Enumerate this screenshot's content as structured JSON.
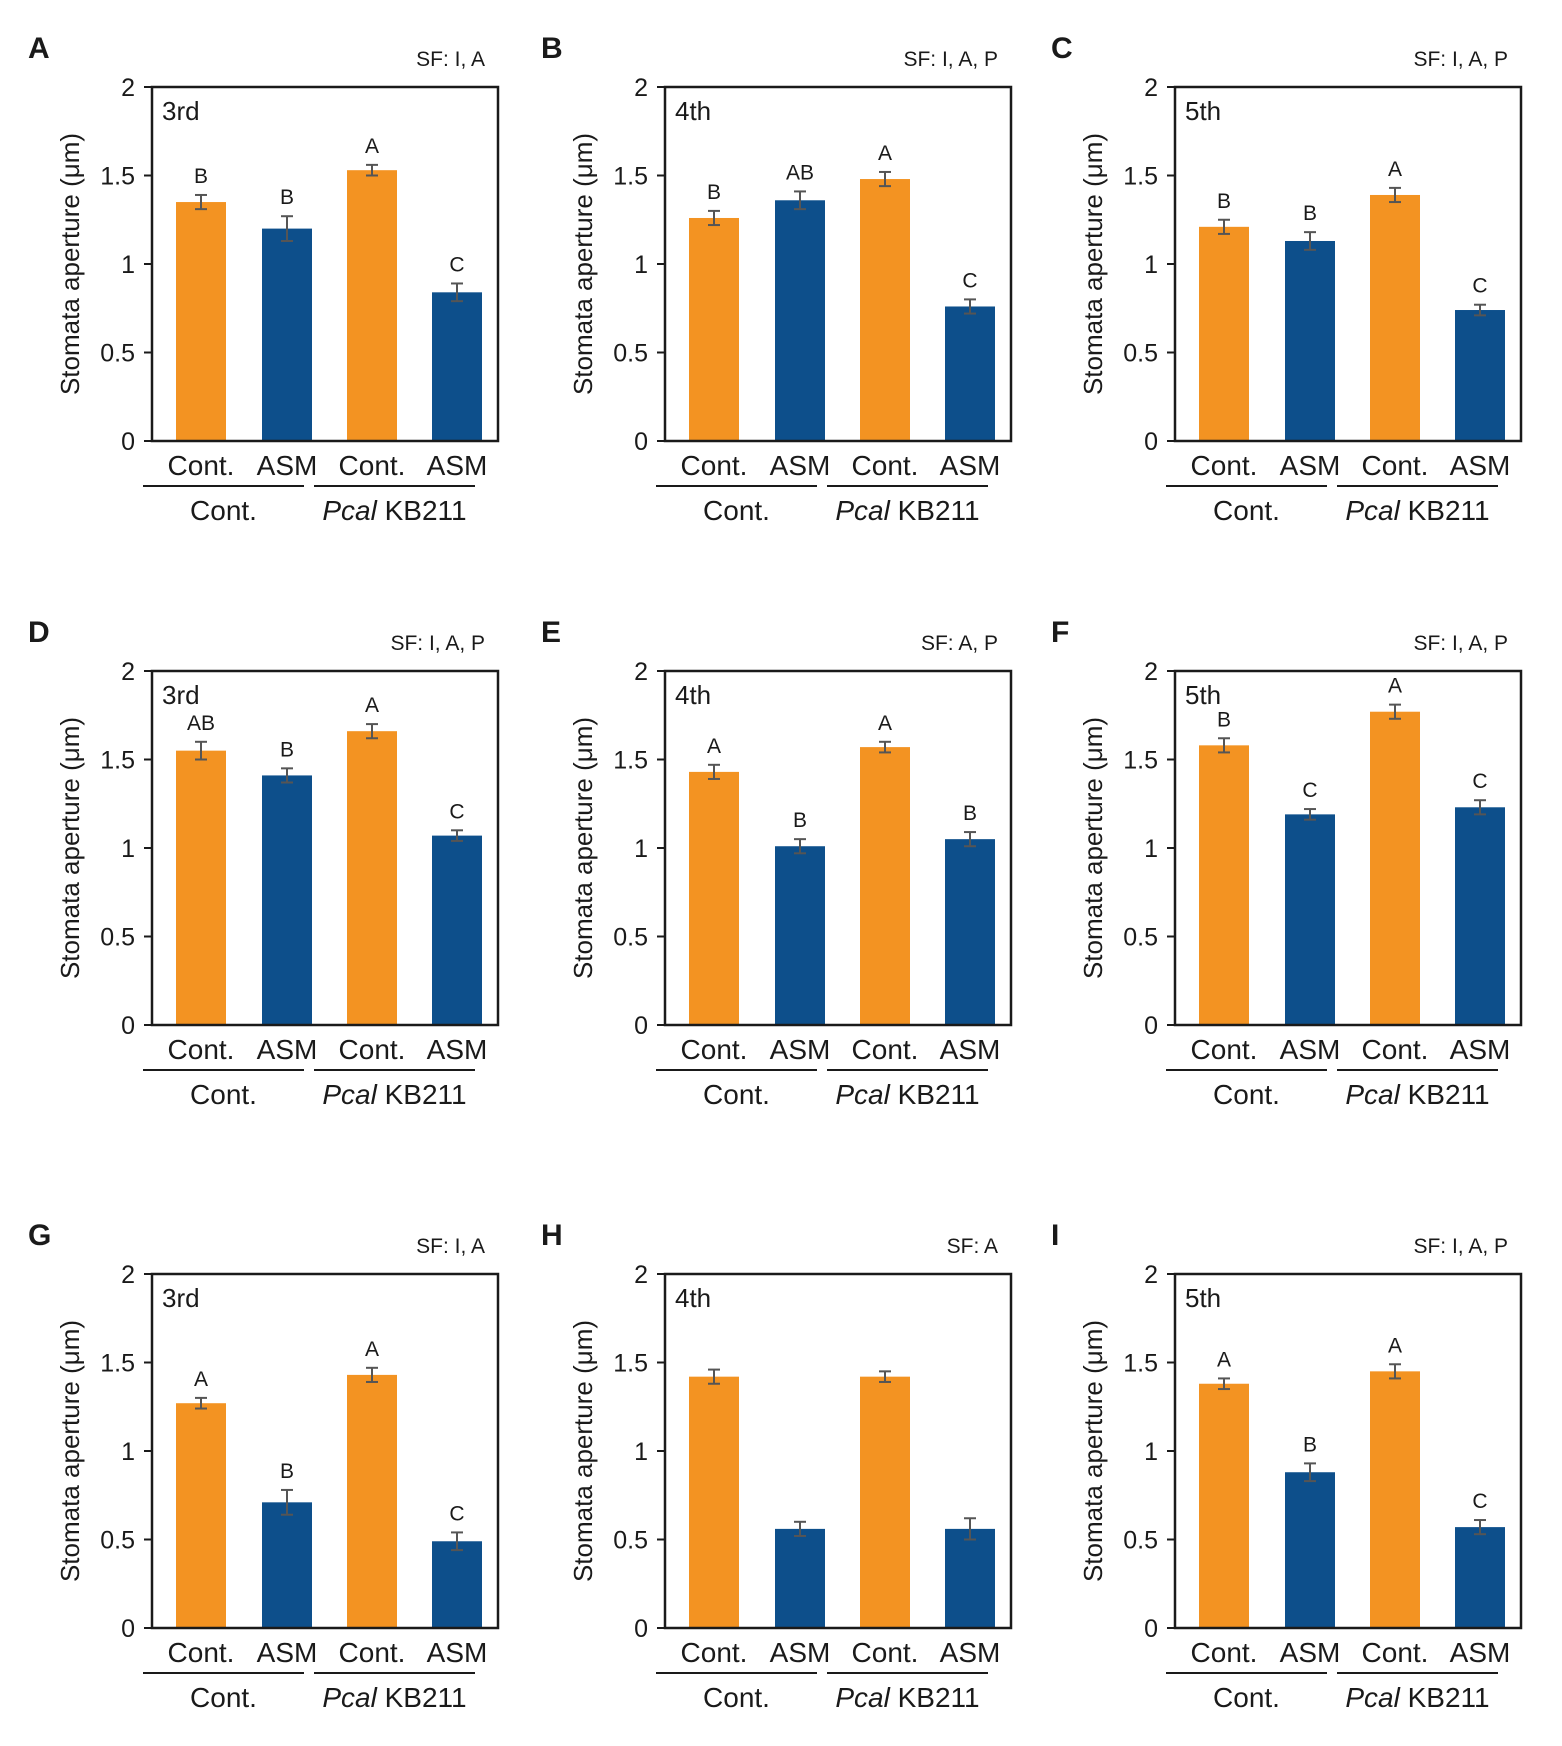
{
  "colors": {
    "control": "#f39322",
    "asm": "#0d4f8b",
    "errorbar": "#555555",
    "axis": "#1a1a1a"
  },
  "chart_data": [
    {
      "id": "A",
      "type": "bar",
      "title": "3rd",
      "sf": "SF: I, A",
      "ylabel": "Stomata aperture (μm)",
      "ylim": [
        0,
        2
      ],
      "yticks": [
        "0",
        "0.5",
        "1",
        "1.5",
        "2"
      ],
      "categories": [
        "Cont.",
        "ASM",
        "Cont.",
        "ASM"
      ],
      "groups": [
        {
          "label": "Cont.",
          "italic": ""
        },
        {
          "label": "KB211",
          "italic": "Pcal"
        }
      ],
      "values": [
        1.35,
        1.2,
        1.53,
        0.84
      ],
      "errors": [
        0.04,
        0.07,
        0.03,
        0.05
      ],
      "letters": [
        "B",
        "B",
        "A",
        "C"
      ]
    },
    {
      "id": "B",
      "type": "bar",
      "title": "4th",
      "sf": "SF: I, A, P",
      "ylabel": "Stomata aperture (μm)",
      "ylim": [
        0,
        2
      ],
      "yticks": [
        "0",
        "0.5",
        "1",
        "1.5",
        "2"
      ],
      "categories": [
        "Cont.",
        "ASM",
        "Cont.",
        "ASM"
      ],
      "groups": [
        {
          "label": "Cont.",
          "italic": ""
        },
        {
          "label": "KB211",
          "italic": "Pcal"
        }
      ],
      "values": [
        1.26,
        1.36,
        1.48,
        0.76
      ],
      "errors": [
        0.04,
        0.05,
        0.04,
        0.04
      ],
      "letters": [
        "B",
        "AB",
        "A",
        "C"
      ]
    },
    {
      "id": "C",
      "type": "bar",
      "title": "5th",
      "sf": "SF: I, A, P",
      "ylabel": "Stomata aperture (μm)",
      "ylim": [
        0,
        2
      ],
      "yticks": [
        "0",
        "0.5",
        "1",
        "1.5",
        "2"
      ],
      "categories": [
        "Cont.",
        "ASM",
        "Cont.",
        "ASM"
      ],
      "groups": [
        {
          "label": "Cont.",
          "italic": ""
        },
        {
          "label": "KB211",
          "italic": "Pcal"
        }
      ],
      "values": [
        1.21,
        1.13,
        1.39,
        0.74
      ],
      "errors": [
        0.04,
        0.05,
        0.04,
        0.03
      ],
      "letters": [
        "B",
        "B",
        "A",
        "C"
      ]
    },
    {
      "id": "D",
      "type": "bar",
      "title": "3rd",
      "sf": "SF: I, A, P",
      "ylabel": "Stomata aperture (μm)",
      "ylim": [
        0,
        2
      ],
      "yticks": [
        "0",
        "0.5",
        "1",
        "1.5",
        "2"
      ],
      "categories": [
        "Cont.",
        "ASM",
        "Cont.",
        "ASM"
      ],
      "groups": [
        {
          "label": "Cont.",
          "italic": ""
        },
        {
          "label": "KB211",
          "italic": "Pcal"
        }
      ],
      "values": [
        1.55,
        1.41,
        1.66,
        1.07
      ],
      "errors": [
        0.05,
        0.04,
        0.04,
        0.03
      ],
      "letters": [
        "AB",
        "B",
        "A",
        "C"
      ]
    },
    {
      "id": "E",
      "type": "bar",
      "title": "4th",
      "sf": "SF: A, P",
      "ylabel": "Stomata aperture (μm)",
      "ylim": [
        0,
        2
      ],
      "yticks": [
        "0",
        "0.5",
        "1",
        "1.5",
        "2"
      ],
      "categories": [
        "Cont.",
        "ASM",
        "Cont.",
        "ASM"
      ],
      "groups": [
        {
          "label": "Cont.",
          "italic": ""
        },
        {
          "label": "KB211",
          "italic": "Pcal"
        }
      ],
      "values": [
        1.43,
        1.01,
        1.57,
        1.05
      ],
      "errors": [
        0.04,
        0.04,
        0.03,
        0.04
      ],
      "letters": [
        "A",
        "B",
        "A",
        "B"
      ]
    },
    {
      "id": "F",
      "type": "bar",
      "title": "5th",
      "sf": "SF: I, A, P",
      "ylabel": "Stomata aperture (μm)",
      "ylim": [
        0,
        2
      ],
      "yticks": [
        "0",
        "0.5",
        "1",
        "1.5",
        "2"
      ],
      "categories": [
        "Cont.",
        "ASM",
        "Cont.",
        "ASM"
      ],
      "groups": [
        {
          "label": "Cont.",
          "italic": ""
        },
        {
          "label": "KB211",
          "italic": "Pcal"
        }
      ],
      "values": [
        1.58,
        1.19,
        1.77,
        1.23
      ],
      "errors": [
        0.04,
        0.03,
        0.04,
        0.04
      ],
      "letters": [
        "B",
        "C",
        "A",
        "C"
      ]
    },
    {
      "id": "G",
      "type": "bar",
      "title": "3rd",
      "sf": "SF: I, A",
      "ylabel": "Stomata aperture (μm)",
      "ylim": [
        0,
        2
      ],
      "yticks": [
        "0",
        "0.5",
        "1",
        "1.5",
        "2"
      ],
      "categories": [
        "Cont.",
        "ASM",
        "Cont.",
        "ASM"
      ],
      "groups": [
        {
          "label": "Cont.",
          "italic": ""
        },
        {
          "label": "KB211",
          "italic": "Pcal"
        }
      ],
      "values": [
        1.27,
        0.71,
        1.43,
        0.49
      ],
      "errors": [
        0.03,
        0.07,
        0.04,
        0.05
      ],
      "letters": [
        "A",
        "B",
        "A",
        "C"
      ]
    },
    {
      "id": "H",
      "type": "bar",
      "title": "4th",
      "sf": "SF: A",
      "ylabel": "Stomata aperture (μm)",
      "ylim": [
        0,
        2
      ],
      "yticks": [
        "0",
        "0.5",
        "1",
        "1.5",
        "2"
      ],
      "categories": [
        "Cont.",
        "ASM",
        "Cont.",
        "ASM"
      ],
      "groups": [
        {
          "label": "Cont.",
          "italic": ""
        },
        {
          "label": "KB211",
          "italic": "Pcal"
        }
      ],
      "values": [
        1.42,
        0.56,
        1.42,
        0.56
      ],
      "errors": [
        0.04,
        0.04,
        0.03,
        0.06
      ],
      "letters": [
        "",
        "",
        "",
        ""
      ]
    },
    {
      "id": "I",
      "type": "bar",
      "title": "5th",
      "sf": "SF: I, A, P",
      "ylabel": "Stomata aperture (μm)",
      "ylim": [
        0,
        2
      ],
      "yticks": [
        "0",
        "0.5",
        "1",
        "1.5",
        "2"
      ],
      "categories": [
        "Cont.",
        "ASM",
        "Cont.",
        "ASM"
      ],
      "groups": [
        {
          "label": "Cont.",
          "italic": ""
        },
        {
          "label": "KB211",
          "italic": "Pcal"
        }
      ],
      "values": [
        1.38,
        0.88,
        1.45,
        0.57
      ],
      "errors": [
        0.03,
        0.05,
        0.04,
        0.04
      ],
      "letters": [
        "A",
        "B",
        "A",
        "C"
      ]
    }
  ]
}
